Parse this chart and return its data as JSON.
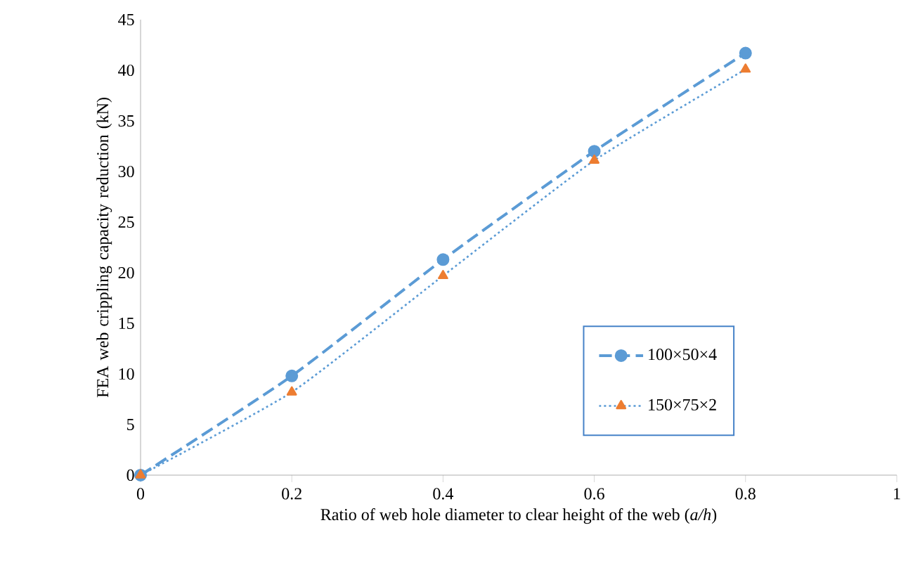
{
  "chart_data": {
    "type": "line",
    "xlabel": "Ratio of web hole diameter to clear height of the web (*a/h*)",
    "ylabel": "FEA web crippling capacity reduction (kN)",
    "x": [
      0,
      0.2,
      0.4,
      0.6,
      0.8
    ],
    "xlim": [
      0,
      1
    ],
    "xticks": [
      0,
      0.2,
      0.4,
      0.6,
      0.8,
      1
    ],
    "ylim": [
      0,
      45
    ],
    "yticks": [
      0,
      5,
      10,
      15,
      20,
      25,
      30,
      35,
      40,
      45
    ],
    "legend": "right",
    "series": [
      {
        "name": "100×50×4",
        "color": "#5b9bd5",
        "marker": "circle",
        "line_style": "dashed",
        "values": [
          0,
          9.8,
          21.3,
          32.0,
          41.7
        ]
      },
      {
        "name": "150×75×2",
        "color": "#5b9bd5",
        "colors": [
          "#ed7d31",
          "#ed7d31",
          "#ed7d31",
          "#ed7d31",
          "#ed7d31"
        ],
        "marker": "triangle",
        "line_style": "dotted",
        "values": [
          0,
          8.2,
          19.7,
          31.1,
          40.1
        ]
      }
    ]
  }
}
